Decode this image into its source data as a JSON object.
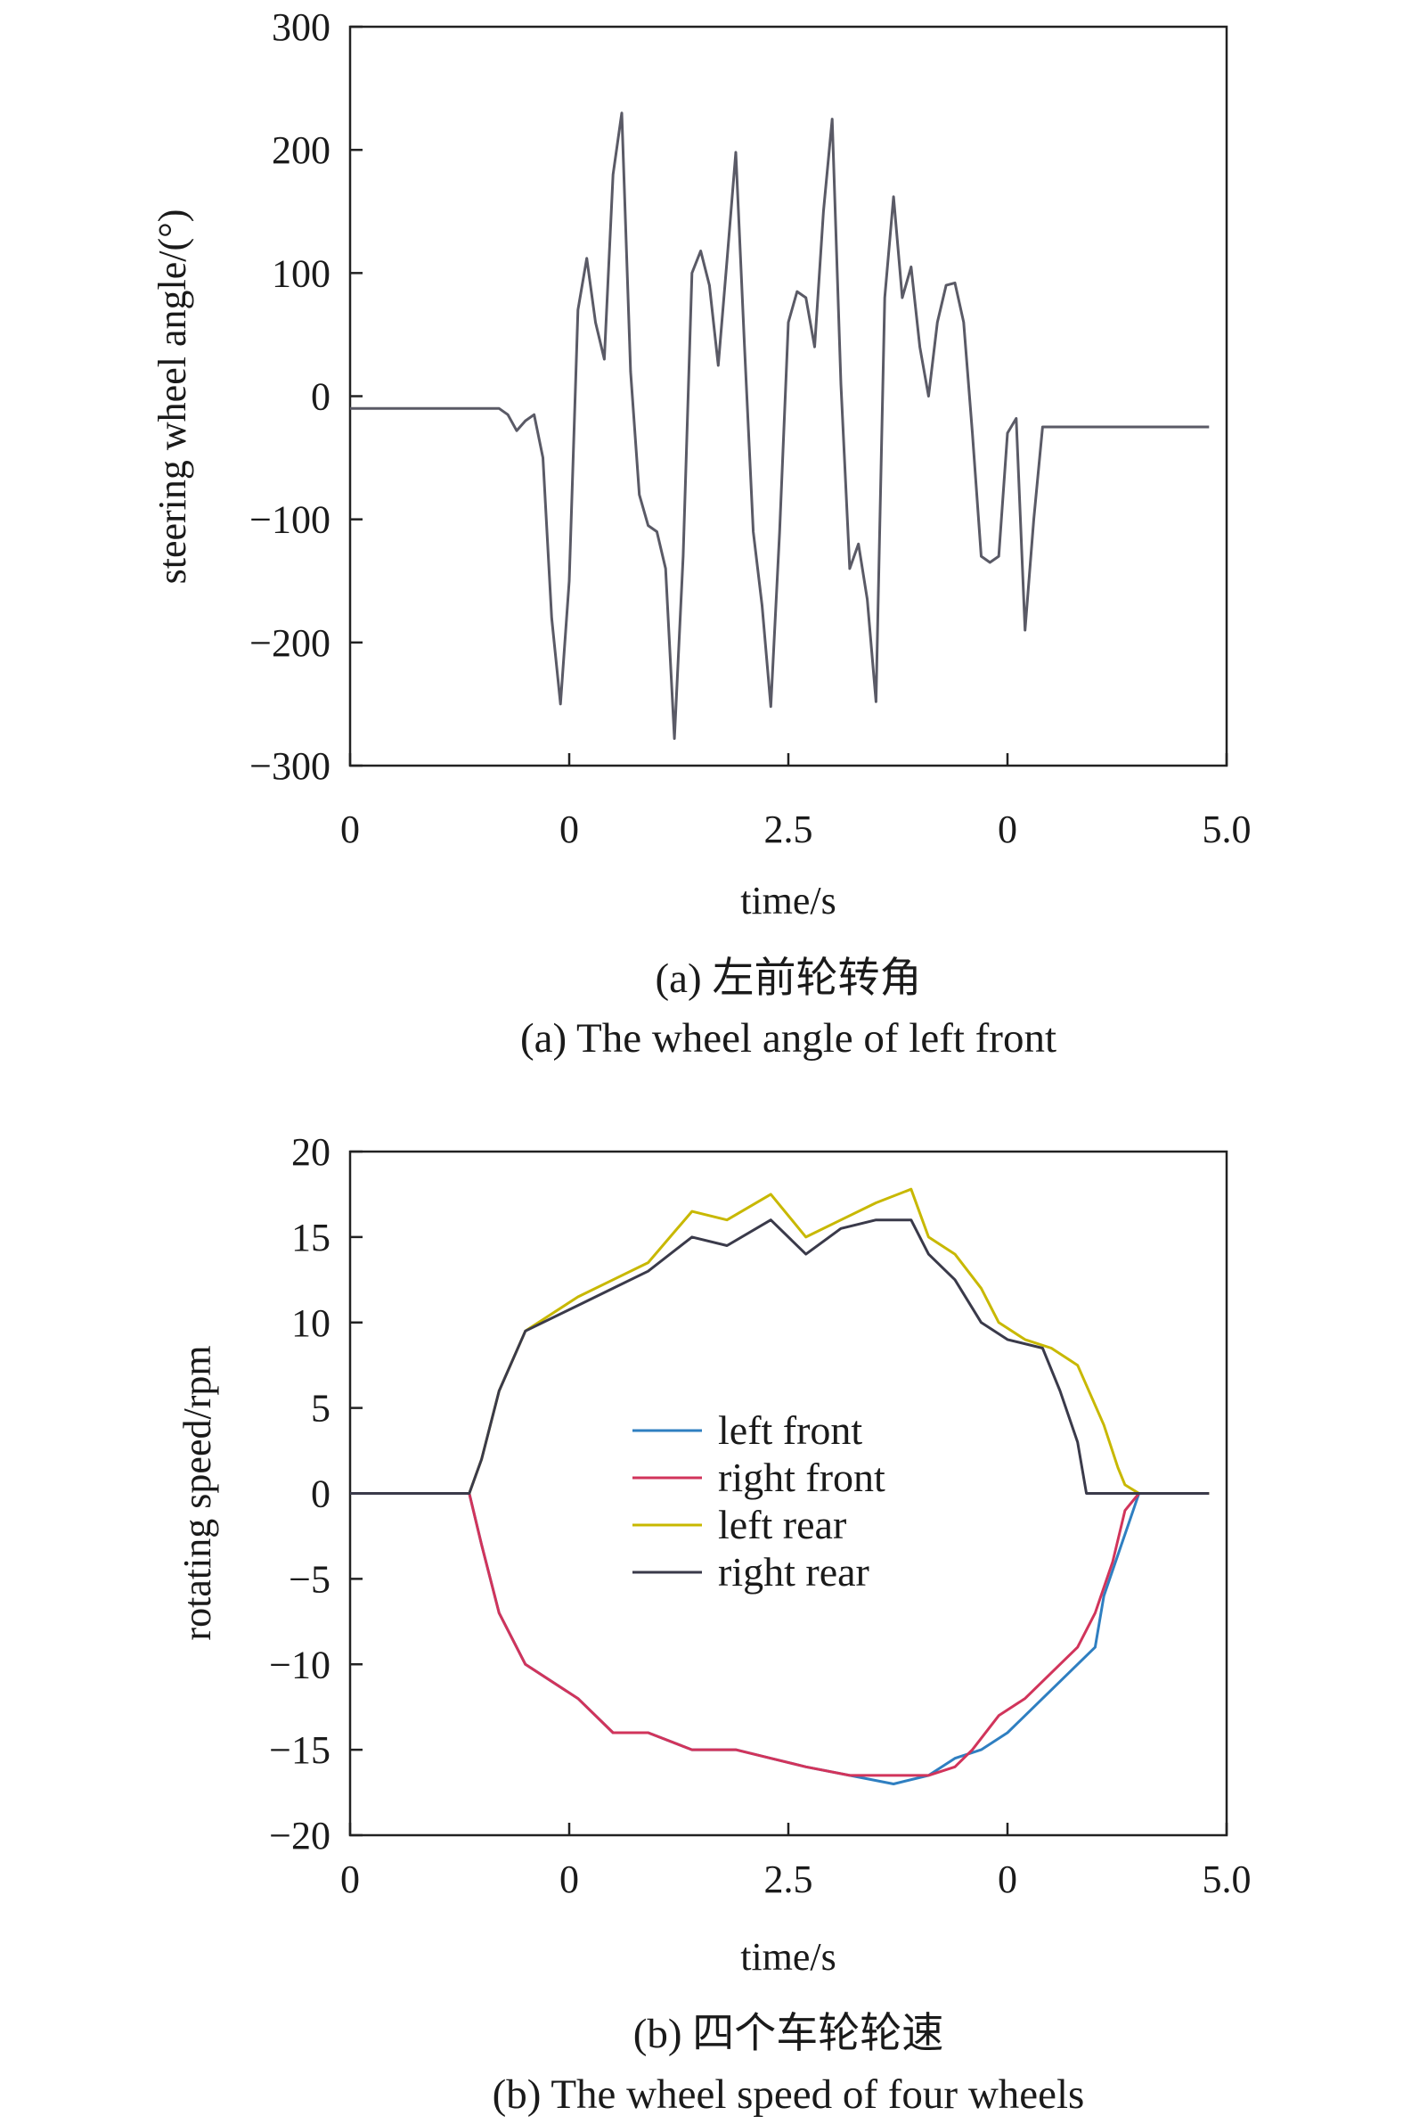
{
  "colors": {
    "gray": "#5a5a66",
    "blue": "#2f7fc1",
    "red": "#d1345b",
    "yellow": "#c8b800",
    "dark": "#3a3a4a",
    "orange": "#d2691e"
  },
  "chart_data": [
    {
      "type": "line",
      "caption_cn": "(a) 左前轮转角",
      "caption_en": "(a) The wheel angle of left front",
      "xlabel": "time/s",
      "ylabel": "steering wheel angle/(°)",
      "xlim": [
        0,
        5.0
      ],
      "ylim": [
        -300,
        300
      ],
      "xtick_labels": [
        "0",
        "0",
        "2.5",
        "0",
        "5.0"
      ],
      "ytick_labels": [
        "300",
        "200",
        "100",
        "0",
        "−100",
        "−200",
        "−300"
      ],
      "yticks": [
        300,
        200,
        100,
        0,
        -100,
        -200,
        -300
      ],
      "series": [
        {
          "color": "gray",
          "x": [
            0,
            0.5,
            0.85,
            0.9,
            0.95,
            1.0,
            1.05,
            1.1,
            1.15,
            1.2,
            1.25,
            1.3,
            1.35,
            1.4,
            1.45,
            1.5,
            1.55,
            1.6,
            1.65,
            1.7,
            1.75,
            1.8,
            1.85,
            1.9,
            1.95,
            2.0,
            2.05,
            2.1,
            2.15,
            2.2,
            2.25,
            2.3,
            2.35,
            2.4,
            2.45,
            2.5,
            2.55,
            2.6,
            2.65,
            2.7,
            2.75,
            2.8,
            2.85,
            2.9,
            2.95,
            3.0,
            3.05,
            3.1,
            3.15,
            3.2,
            3.25,
            3.3,
            3.35,
            3.4,
            3.45,
            3.5,
            3.55,
            3.6,
            3.65,
            3.7,
            3.75,
            3.8,
            3.85,
            3.9,
            3.95,
            4.0,
            4.05,
            4.1,
            4.15,
            4.2,
            4.25,
            4.3,
            4.35,
            4.4,
            4.45,
            4.5,
            4.55,
            4.6,
            4.65,
            4.7,
            4.75,
            4.8,
            4.85,
            4.9
          ],
          "y": [
            -10,
            -10,
            -10,
            -15,
            -28,
            -20,
            -15,
            -50,
            -180,
            -250,
            -150,
            70,
            112,
            60,
            30,
            180,
            230,
            20,
            -80,
            -105,
            -110,
            -140,
            -278,
            -130,
            100,
            118,
            90,
            25,
            110,
            198,
            40,
            -110,
            -170,
            -252,
            -110,
            60,
            85,
            80,
            40,
            150,
            225,
            10,
            -140,
            -120,
            -165,
            -248,
            80,
            162,
            80,
            105,
            40,
            0,
            60,
            90,
            92,
            60,
            -30,
            -130,
            -135,
            -130,
            -30,
            -18,
            -190,
            -100,
            -25,
            -25,
            -25,
            -25,
            -25,
            -25,
            -25,
            -25,
            -25,
            -25,
            -25,
            -25,
            -25,
            -25,
            -25,
            -25,
            -25,
            -25,
            -25,
            -25
          ]
        }
      ]
    },
    {
      "type": "line",
      "caption_cn": "(b) 四个车轮轮速",
      "caption_en": "(b) The wheel speed of four wheels",
      "xlabel": "time/s",
      "ylabel": "rotating speed/rpm",
      "xlim": [
        0,
        5.0
      ],
      "ylim": [
        -20,
        20
      ],
      "xtick_labels": [
        "0",
        "0",
        "2.5",
        "0",
        "5.0"
      ],
      "ytick_labels": [
        "20",
        "15",
        "10",
        "5",
        "0",
        "−5",
        "−10",
        "−15",
        "−20"
      ],
      "yticks": [
        20,
        15,
        10,
        5,
        0,
        -5,
        -10,
        -15,
        -20
      ],
      "legend": [
        "left front",
        "right front",
        "left rear",
        "right rear"
      ],
      "legend_position": "center",
      "series": [
        {
          "name": "left front",
          "color": "blue",
          "x": [
            0,
            0.68,
            0.75,
            0.85,
            1.0,
            1.3,
            1.5,
            1.7,
            1.95,
            2.2,
            2.4,
            2.6,
            2.85,
            3.1,
            3.3,
            3.45,
            3.6,
            3.75,
            3.85,
            3.95,
            4.1,
            4.25,
            4.3,
            4.4,
            4.45,
            4.5,
            4.6,
            4.75,
            4.9
          ],
          "y": [
            0,
            0,
            -3,
            -7,
            -10,
            -12,
            -14,
            -14,
            -15,
            -15,
            -15.5,
            -16,
            -16.5,
            -17,
            -16.5,
            -15.5,
            -15,
            -14,
            -13,
            -12,
            -10.5,
            -9,
            -6,
            -3,
            -1.5,
            0,
            0,
            0,
            0
          ]
        },
        {
          "name": "right front",
          "color": "red",
          "x": [
            0,
            0.68,
            0.75,
            0.85,
            1.0,
            1.3,
            1.5,
            1.7,
            1.95,
            2.2,
            2.4,
            2.6,
            2.85,
            3.1,
            3.3,
            3.45,
            3.55,
            3.7,
            3.85,
            4.0,
            4.15,
            4.25,
            4.35,
            4.42,
            4.5,
            4.75,
            4.9
          ],
          "y": [
            0,
            0,
            -3,
            -7,
            -10,
            -12,
            -14,
            -14,
            -15,
            -15,
            -15.5,
            -16,
            -16.5,
            -16.5,
            -16.5,
            -16,
            -15,
            -13,
            -12,
            -10.5,
            -9,
            -7,
            -4,
            -1,
            0,
            0,
            0
          ]
        },
        {
          "name": "left rear",
          "color": "yellow",
          "x": [
            0,
            0.68,
            0.75,
            0.85,
            1.0,
            1.3,
            1.5,
            1.7,
            1.95,
            2.15,
            2.4,
            2.6,
            2.8,
            3.0,
            3.2,
            3.3,
            3.45,
            3.6,
            3.7,
            3.85,
            4.0,
            4.15,
            4.3,
            4.38,
            4.42,
            4.5,
            4.75,
            4.9
          ],
          "y": [
            0,
            0,
            2,
            6,
            9.5,
            11.5,
            12.5,
            13.5,
            16.5,
            16,
            17.5,
            15,
            16,
            17,
            17.8,
            15,
            14,
            12,
            10,
            9,
            8.5,
            7.5,
            4,
            1.5,
            0.5,
            0,
            0,
            0
          ]
        },
        {
          "name": "right rear",
          "color": "dark",
          "x": [
            0,
            0.68,
            0.75,
            0.85,
            1.0,
            1.3,
            1.5,
            1.7,
            1.95,
            2.15,
            2.4,
            2.6,
            2.8,
            3.0,
            3.2,
            3.3,
            3.45,
            3.6,
            3.75,
            3.95,
            4.05,
            4.15,
            4.2,
            4.3,
            4.5,
            4.75,
            4.9
          ],
          "y": [
            0,
            0,
            2,
            6,
            9.5,
            11,
            12,
            13,
            15,
            14.5,
            16,
            14,
            15.5,
            16,
            16,
            14,
            12.5,
            10,
            9,
            8.5,
            6,
            3,
            0,
            0,
            0,
            0,
            0
          ]
        }
      ]
    }
  ]
}
